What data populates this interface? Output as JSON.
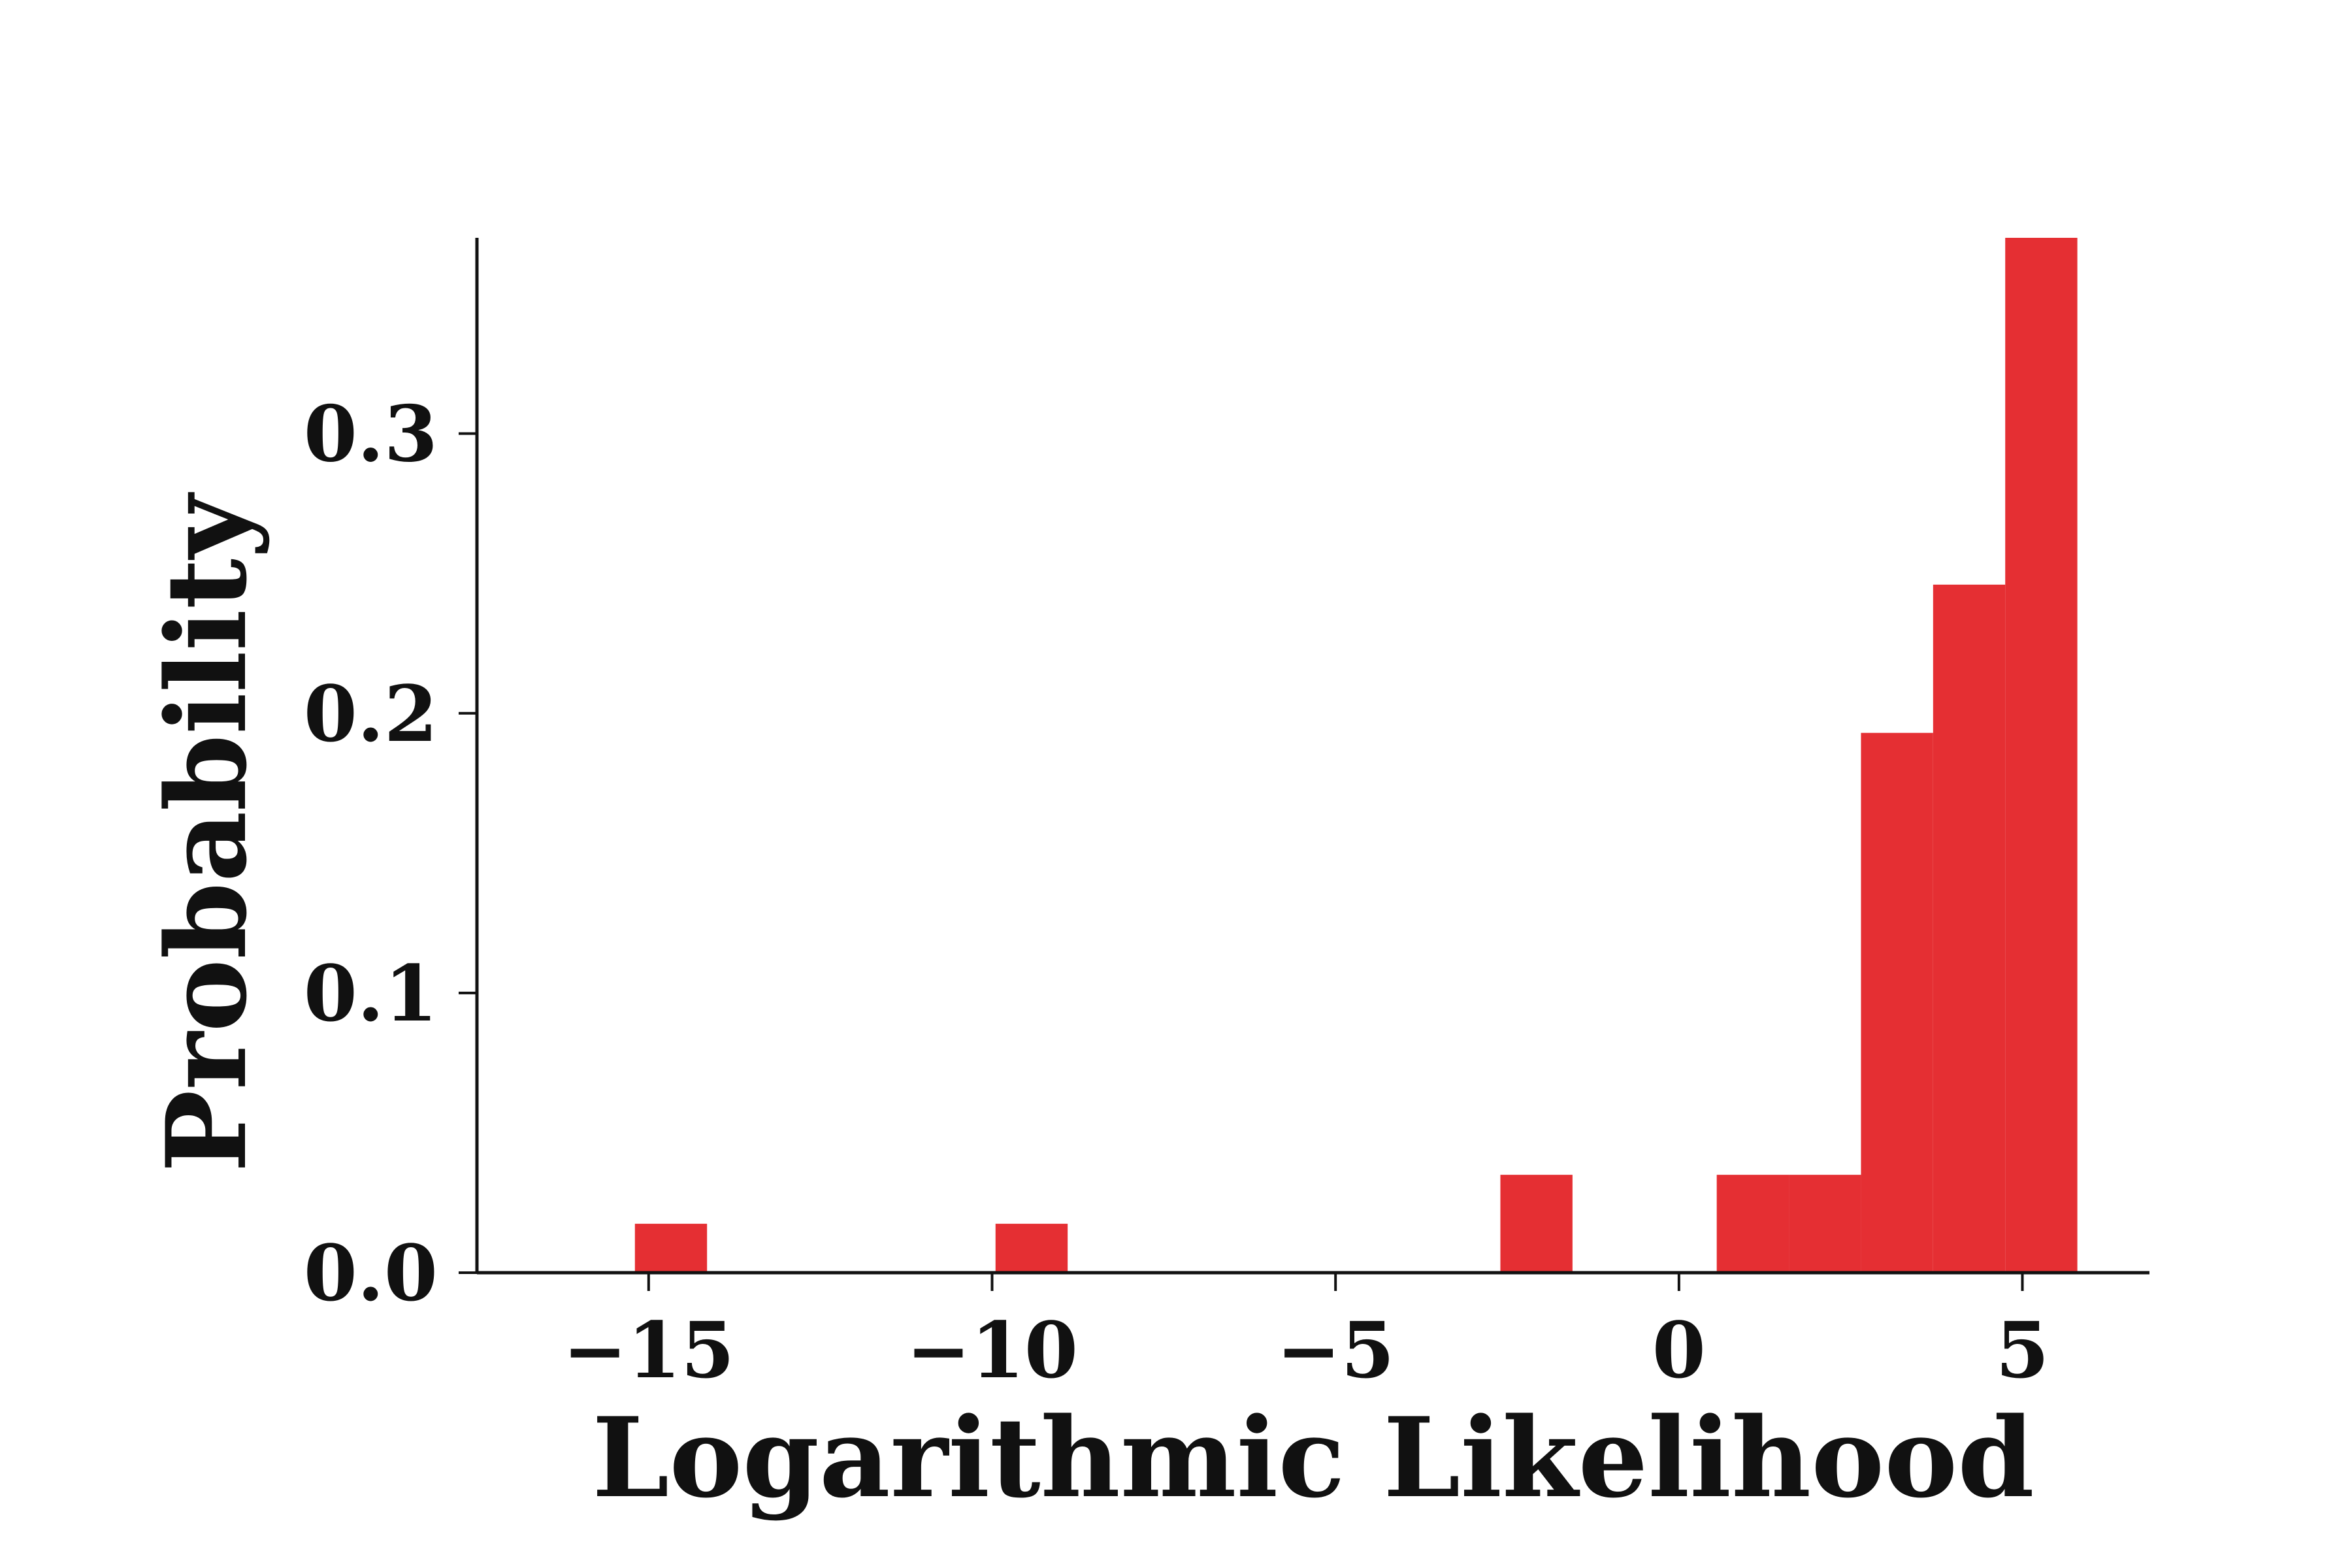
{
  "chart_data": {
    "type": "bar",
    "title": "",
    "xlabel": "Logarithmic Likelihood",
    "ylabel": "Probability",
    "xlim": [
      -17.5,
      6.85
    ],
    "ylim": [
      0,
      0.37
    ],
    "xticks": [
      -15,
      -10,
      -5,
      0,
      5
    ],
    "xtick_labels": [
      "−15",
      "−10",
      "−5",
      "0",
      "5"
    ],
    "yticks": [
      0.0,
      0.1,
      0.2,
      0.3
    ],
    "ytick_labels": [
      "0.0",
      "0.1",
      "0.2",
      "0.3"
    ],
    "grid": false,
    "bar_color": "#e52f33",
    "bins": [
      {
        "x0": -15.2,
        "x1": -14.15,
        "value": 0.0175
      },
      {
        "x0": -9.95,
        "x1": -8.9,
        "value": 0.0175
      },
      {
        "x0": -2.6,
        "x1": -1.55,
        "value": 0.035
      },
      {
        "x0": 0.55,
        "x1": 1.6,
        "value": 0.035
      },
      {
        "x0": 1.6,
        "x1": 2.65,
        "value": 0.035
      },
      {
        "x0": 2.65,
        "x1": 3.7,
        "value": 0.193
      },
      {
        "x0": 3.7,
        "x1": 4.75,
        "value": 0.246
      },
      {
        "x0": 4.75,
        "x1": 5.8,
        "value": 0.37
      }
    ]
  }
}
